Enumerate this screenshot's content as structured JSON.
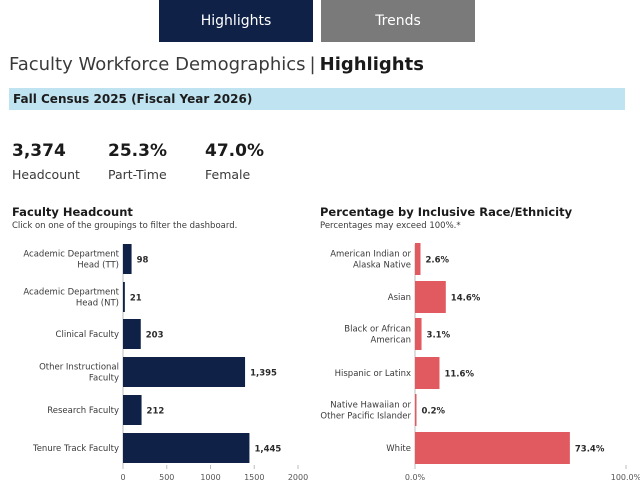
{
  "tabs": [
    {
      "label": "Highlights",
      "active": true
    },
    {
      "label": "Trends",
      "active": false
    }
  ],
  "header": {
    "title": "Faculty Workforce Demographics",
    "separator": "|",
    "section": "Highlights"
  },
  "census": {
    "label": "Fall Census 2025 (Fiscal Year 2026)"
  },
  "kpis": [
    {
      "value": "3,374",
      "label": "Headcount"
    },
    {
      "value": "25.3%",
      "label": "Part-Time"
    },
    {
      "value": "47.0%",
      "label": "Female"
    }
  ],
  "colors": {
    "navy": "#0f2147",
    "red": "#e05a5f",
    "census_bg": "#bfe3f1",
    "inactive_tab": "#7a7a7a"
  },
  "chart_data": [
    {
      "type": "bar",
      "orientation": "horizontal",
      "title": "Faculty Headcount",
      "subtitle": "Click on one of the groupings to filter the dashboard.",
      "categories": [
        [
          "Academic Department",
          "Head (TT)"
        ],
        [
          "Academic Department",
          "Head (NT)"
        ],
        [
          "Clinical Faculty"
        ],
        [
          "Other Instructional",
          "Faculty"
        ],
        [
          "Research Faculty"
        ],
        [
          "Tenure Track Faculty"
        ]
      ],
      "values": [
        98,
        21,
        203,
        1395,
        212,
        1445
      ],
      "value_labels": [
        "98",
        "21",
        "203",
        "1,395",
        "212",
        "1,445"
      ],
      "xlim": [
        0,
        2000
      ],
      "xticks": [
        0,
        500,
        1000,
        1500,
        2000
      ],
      "xtick_labels": [
        "0",
        "500",
        "1000",
        "1500",
        "2000"
      ],
      "color": "#0f2147"
    },
    {
      "type": "bar",
      "orientation": "horizontal",
      "title": "Percentage by Inclusive Race/Ethnicity",
      "subtitle": "Percentages may exceed 100%.*",
      "categories": [
        [
          "American Indian or",
          "Alaska Native"
        ],
        [
          "Asian"
        ],
        [
          "Black or African",
          "American"
        ],
        [
          "Hispanic or Latinx"
        ],
        [
          "Native Hawaiian or",
          "Other Pacific Islander"
        ],
        [
          "White"
        ]
      ],
      "values": [
        2.6,
        14.6,
        3.1,
        11.6,
        0.2,
        73.4
      ],
      "value_labels": [
        "2.6%",
        "14.6%",
        "3.1%",
        "11.6%",
        "0.2%",
        "73.4%"
      ],
      "xlim": [
        0,
        100
      ],
      "xticks": [
        0,
        100
      ],
      "xtick_labels": [
        "0.0%",
        "100.0%"
      ],
      "color": "#e05a5f"
    }
  ]
}
